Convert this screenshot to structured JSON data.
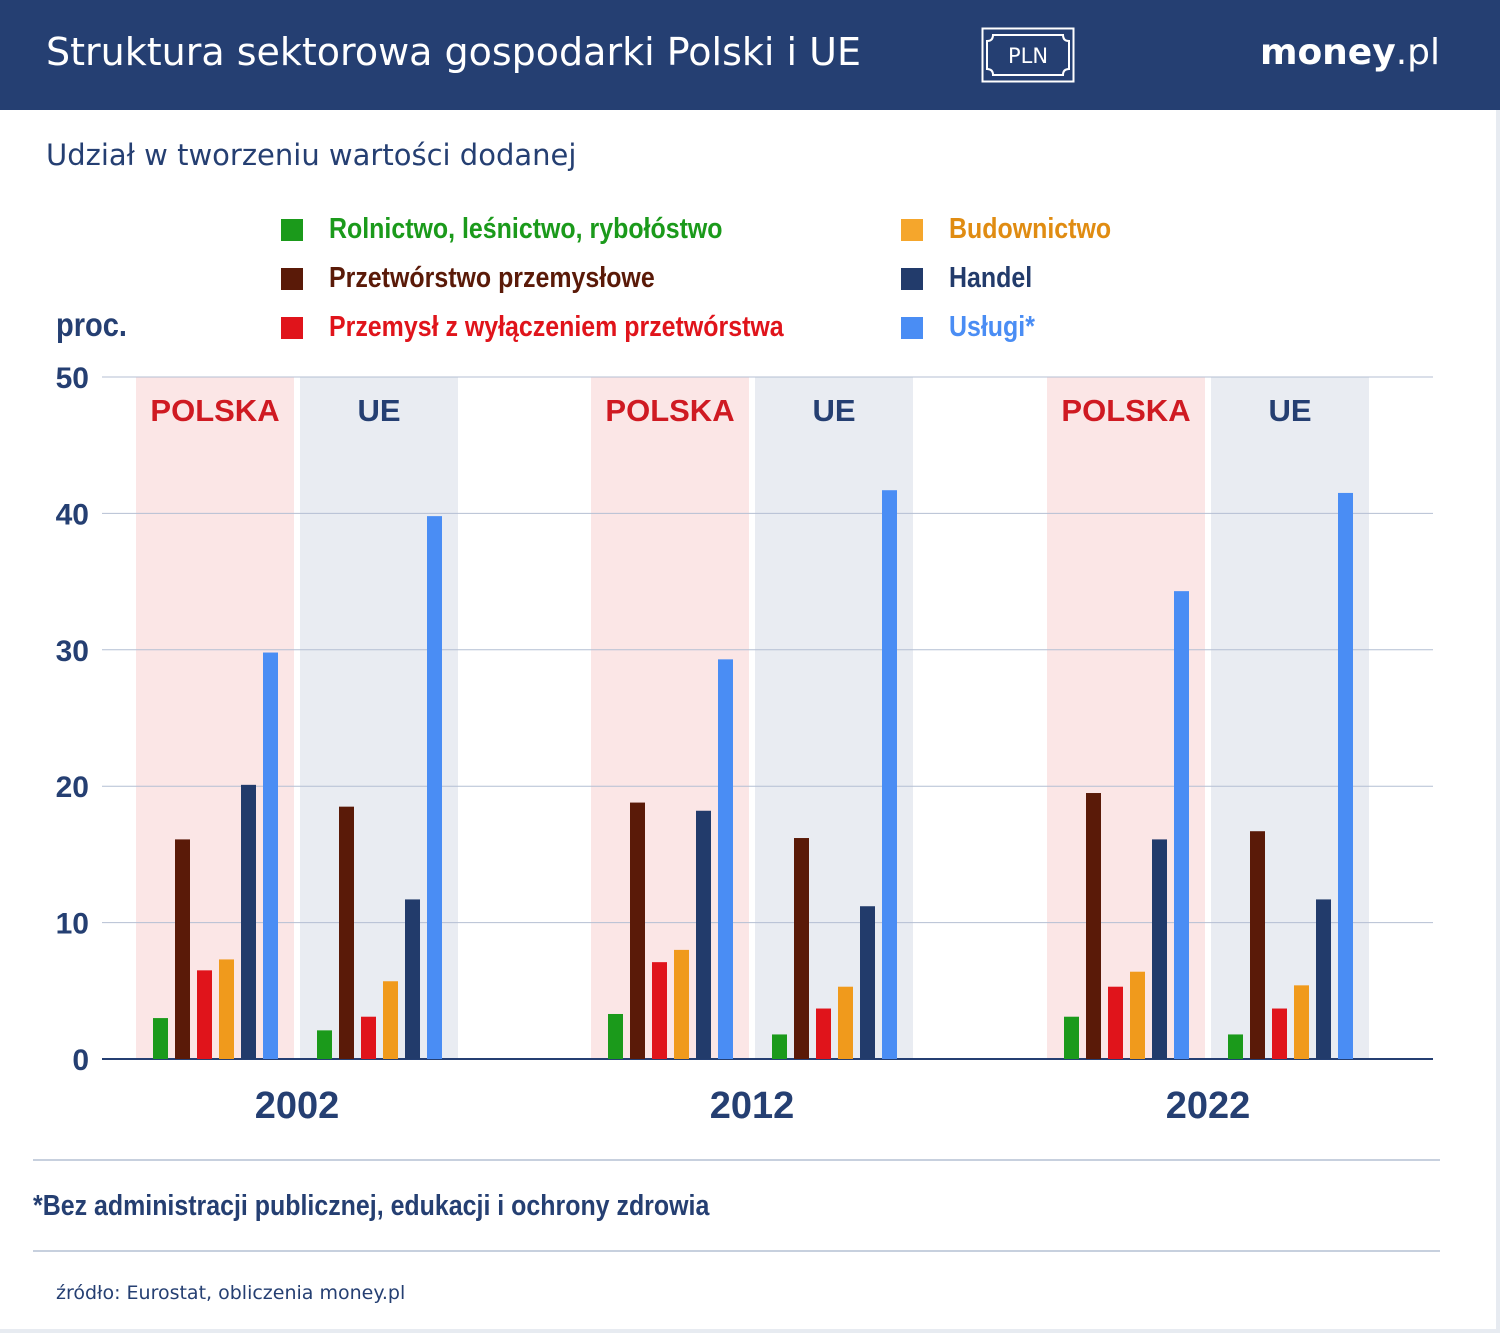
{
  "header": {
    "title": "Struktura sektorowa gospodarki Polski i UE",
    "badge": "PLN",
    "brand_bold": "money",
    "brand_suffix": ".pl"
  },
  "subtitle": "Udział w tworzeniu wartości dodanej",
  "footnote": "*Bez administracji publicznej, edukacji i ochrony zdrowia",
  "source": "źródło: Eurostat, obliczenia money.pl",
  "colors": {
    "header_bg": "#253f72",
    "polska_bg": "#fbe6e6",
    "ue_bg": "#e9ecf2",
    "polska_label": "#cf1a22",
    "ue_label": "#253f72",
    "axis_text": "#253f72",
    "grid": "#b4bfd3"
  },
  "chart_data": {
    "type": "bar",
    "title": "Udział w tworzeniu wartości dodanej",
    "ylabel": "proc.",
    "xlabel": "",
    "ylim": [
      0,
      50
    ],
    "yticks": [
      0,
      10,
      20,
      30,
      40,
      50
    ],
    "grid": true,
    "years": [
      "2002",
      "2012",
      "2022"
    ],
    "regions": [
      "POLSKA",
      "UE"
    ],
    "series": [
      {
        "name": "Rolnictwo, leśnictwo, rybołóstwo",
        "color": "#1b9a1b",
        "values": {
          "2002": [
            3.0,
            2.1
          ],
          "2012": [
            3.3,
            1.8
          ],
          "2022": [
            3.1,
            1.8
          ]
        }
      },
      {
        "name": "Przetwórstwo przemysłowe",
        "color": "#5a1a08",
        "values": {
          "2002": [
            16.1,
            18.5
          ],
          "2012": [
            18.8,
            16.2
          ],
          "2022": [
            19.5,
            16.7
          ]
        }
      },
      {
        "name": "Przemysł z wyłączeniem przetwórstwa",
        "color": "#e0141b",
        "values": {
          "2002": [
            6.5,
            3.1
          ],
          "2012": [
            7.1,
            3.7
          ],
          "2022": [
            5.3,
            3.7
          ]
        }
      },
      {
        "name": "Budownictwo",
        "color": "#f09a1c",
        "values": {
          "2002": [
            7.3,
            5.7
          ],
          "2012": [
            8.0,
            5.3
          ],
          "2022": [
            6.4,
            5.4
          ]
        }
      },
      {
        "name": "Handel",
        "color": "#223b6b",
        "values": {
          "2002": [
            20.1,
            11.7
          ],
          "2012": [
            18.2,
            11.2
          ],
          "2022": [
            16.1,
            11.7
          ]
        }
      },
      {
        "name": "Usługi*",
        "color": "#4a8df4",
        "values": {
          "2002": [
            29.8,
            39.8
          ],
          "2012": [
            29.3,
            41.7
          ],
          "2022": [
            34.3,
            41.5
          ]
        }
      }
    ]
  }
}
